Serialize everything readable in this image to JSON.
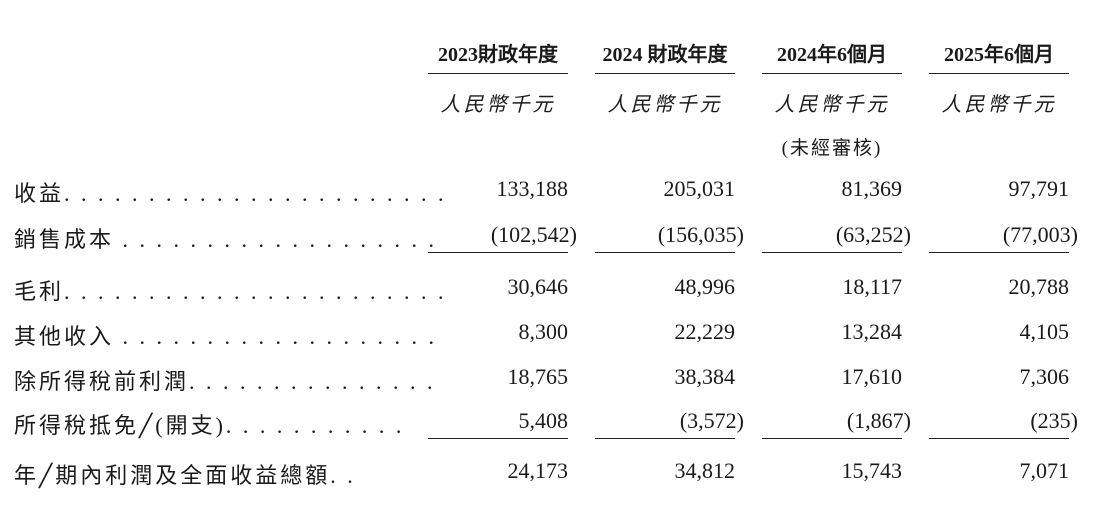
{
  "columns": [
    {
      "header": "2023財政年度",
      "unit": "人民幣千元",
      "note": ""
    },
    {
      "header": "2024 財政年度",
      "unit": "人民幣千元",
      "note": ""
    },
    {
      "header": "2024年6個月",
      "unit": "人民幣千元",
      "note": "(未經審核)"
    },
    {
      "header": "2025年6個月",
      "unit": "人民幣千元",
      "note": ""
    }
  ],
  "rows": [
    {
      "label": "收益. . . . . . . . . . . . . . . . . . . . . . .",
      "values": [
        "133,188",
        "205,031",
        "81,369",
        "97,791"
      ]
    },
    {
      "label": "銷售成本 . . . . . . . . . . . . . . . . . . .",
      "values": [
        "(102,542)",
        "(156,035)",
        "(63,252)",
        "(77,003)"
      ]
    },
    {
      "label": "毛利. . . . . . . . . . . . . . . . . . . . . . .",
      "values": [
        "30,646",
        "48,996",
        "18,117",
        "20,788"
      ]
    },
    {
      "label": "其他收入 . . . . . . . . . . . . . . . . . . .",
      "values": [
        "8,300",
        "22,229",
        "13,284",
        "4,105"
      ]
    },
    {
      "label": "除所得稅前利潤. . . . . . . . . . . . . . .",
      "values": [
        "18,765",
        "38,384",
        "17,610",
        "7,306"
      ]
    },
    {
      "label": "所得稅抵免╱(開支). . . . . . . . . . .",
      "values": [
        "5,408",
        "(3,572)",
        "(1,867)",
        "(235)"
      ]
    },
    {
      "label": "年╱期內利潤及全面收益總額. .",
      "values": [
        "24,173",
        "34,812",
        "15,743",
        "7,071"
      ]
    }
  ]
}
